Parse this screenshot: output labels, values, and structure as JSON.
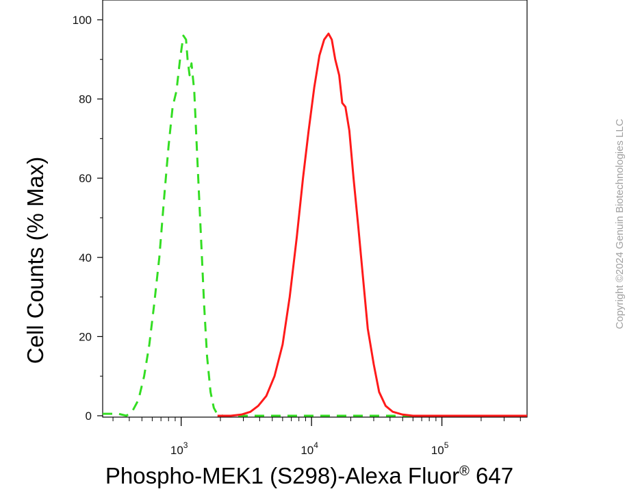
{
  "chart_data": {
    "type": "line",
    "xlabel": "Phospho-MEK1 (S298)-Alexa Fluor",
    "xlabel_superscript": "®",
    "xlabel_suffix": " 647",
    "ylabel": "Cell Counts (% Max)",
    "x_scale": "log",
    "xlim": [
      250,
      450000
    ],
    "ylim": [
      0,
      105
    ],
    "x_ticks": [
      {
        "value": 1000,
        "base": "10",
        "exp": "3"
      },
      {
        "value": 10000,
        "base": "10",
        "exp": "4"
      },
      {
        "value": 100000,
        "base": "10",
        "exp": "5"
      }
    ],
    "y_ticks": [
      0,
      20,
      40,
      60,
      80,
      100
    ],
    "grid": false,
    "series": [
      {
        "color": "#33dd22",
        "style": "dashed",
        "points": [
          [
            250,
            0.5
          ],
          [
            330,
            0.5
          ],
          [
            380,
            0
          ],
          [
            420,
            1
          ],
          [
            470,
            4
          ],
          [
            520,
            10
          ],
          [
            570,
            18
          ],
          [
            620,
            28
          ],
          [
            680,
            40
          ],
          [
            740,
            55
          ],
          [
            800,
            68
          ],
          [
            860,
            78
          ],
          [
            920,
            82
          ],
          [
            980,
            90
          ],
          [
            1040,
            96
          ],
          [
            1090,
            95
          ],
          [
            1120,
            90
          ],
          [
            1160,
            86
          ],
          [
            1200,
            89
          ],
          [
            1260,
            82
          ],
          [
            1330,
            65
          ],
          [
            1420,
            45
          ],
          [
            1500,
            28
          ],
          [
            1580,
            15
          ],
          [
            1680,
            6
          ],
          [
            1780,
            2
          ],
          [
            1900,
            0.3
          ],
          [
            2100,
            0
          ],
          [
            3500,
            0
          ],
          [
            6000,
            0
          ],
          [
            10000,
            0
          ],
          [
            20000,
            0
          ],
          [
            60000,
            0
          ],
          [
            120000,
            0
          ],
          [
            250000,
            0
          ],
          [
            450000,
            0
          ]
        ]
      },
      {
        "color": "#ff1a1a",
        "style": "solid",
        "points": [
          [
            1900,
            0
          ],
          [
            2400,
            0
          ],
          [
            2900,
            0.3
          ],
          [
            3400,
            1
          ],
          [
            3900,
            2.5
          ],
          [
            4500,
            5
          ],
          [
            5200,
            10
          ],
          [
            6000,
            18
          ],
          [
            6800,
            30
          ],
          [
            7700,
            45
          ],
          [
            8600,
            60
          ],
          [
            9500,
            72
          ],
          [
            10500,
            83
          ],
          [
            11500,
            91
          ],
          [
            12500,
            95
          ],
          [
            13500,
            96.5
          ],
          [
            14300,
            95
          ],
          [
            15200,
            90
          ],
          [
            16300,
            86
          ],
          [
            17200,
            79
          ],
          [
            18200,
            78
          ],
          [
            19500,
            72
          ],
          [
            21000,
            60
          ],
          [
            22800,
            48
          ],
          [
            24800,
            35
          ],
          [
            27000,
            22
          ],
          [
            30000,
            13
          ],
          [
            33000,
            6
          ],
          [
            37000,
            2.5
          ],
          [
            42000,
            1
          ],
          [
            50000,
            0.3
          ],
          [
            60000,
            0
          ],
          [
            120000,
            0
          ],
          [
            450000,
            0
          ]
        ]
      }
    ]
  },
  "watermark": "Copyright ©2024 Genuin Biotechnologies LLC"
}
